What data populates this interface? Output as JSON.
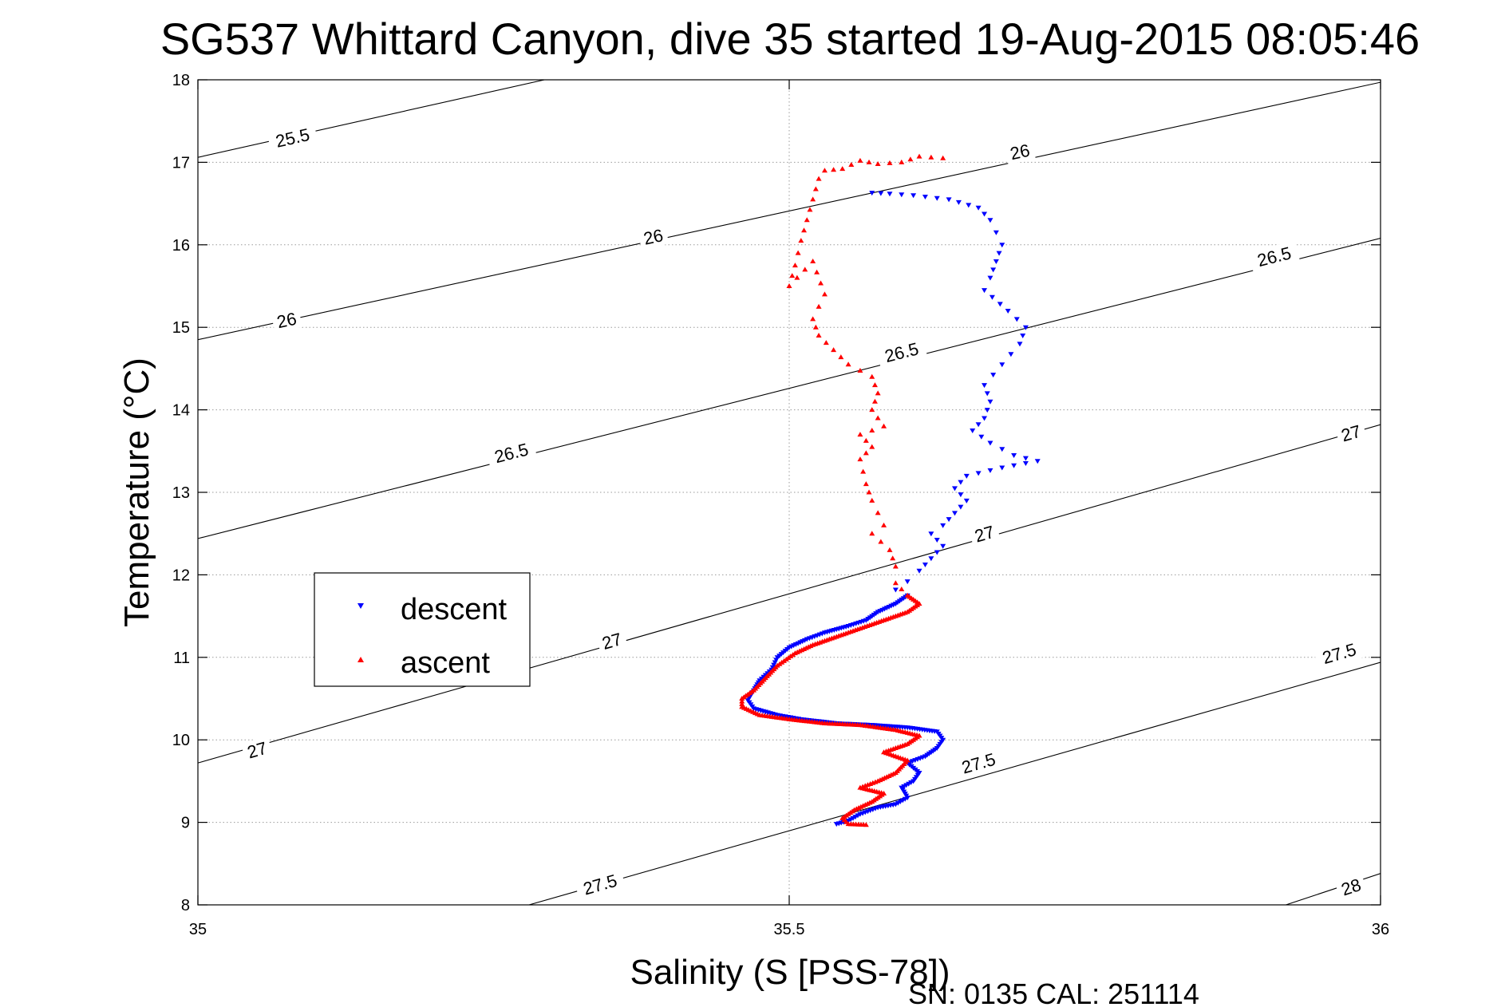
{
  "chart_data": {
    "type": "scatter",
    "title": "SG537 Whittard Canyon, dive 35 started 19-Aug-2015 08:05:46",
    "xlabel": "Salinity (S [PSS-78])",
    "ylabel": "Temperature (°C)",
    "xlim": [
      35,
      36
    ],
    "ylim": [
      8,
      18
    ],
    "xticks": [
      "35",
      "35.5",
      "36"
    ],
    "yticks": [
      "8",
      "9",
      "10",
      "11",
      "12",
      "13",
      "14",
      "15",
      "16",
      "17",
      "18"
    ],
    "grid": true,
    "legend_position": "left",
    "footer": "SN: 0135  CAL: 251114",
    "density_contours": [
      {
        "label": "25.5",
        "points": [
          [
            35,
            17.06
          ],
          [
            35.293,
            18.0
          ]
        ],
        "label_at": [
          [
            35.08,
            17.3
          ]
        ]
      },
      {
        "label": "26",
        "points": [
          [
            35,
            14.85
          ],
          [
            36,
            17.97
          ]
        ],
        "label_at": [
          [
            35.075,
            15.09
          ],
          [
            35.385,
            16.1
          ],
          [
            35.695,
            17.13
          ]
        ]
      },
      {
        "label": "26.5",
        "points": [
          [
            35,
            12.44
          ],
          [
            36,
            16.08
          ]
        ],
        "label_at": [
          [
            35.265,
            13.48
          ],
          [
            35.595,
            14.7
          ],
          [
            35.91,
            15.86
          ]
        ]
      },
      {
        "label": "27",
        "points": [
          [
            35,
            9.72
          ],
          [
            36,
            13.82
          ]
        ],
        "label_at": [
          [
            35.05,
            9.88
          ],
          [
            35.35,
            11.2
          ],
          [
            35.665,
            12.5
          ],
          [
            35.975,
            13.72
          ]
        ]
      },
      {
        "label": "27.5",
        "points": [
          [
            35.28,
            8.0
          ],
          [
            36,
            10.94
          ]
        ],
        "label_at": [
          [
            35.34,
            8.25
          ],
          [
            35.66,
            9.72
          ],
          [
            35.965,
            11.05
          ]
        ]
      },
      {
        "label": "28",
        "points": [
          [
            35.92,
            8.0
          ],
          [
            36,
            8.38
          ]
        ],
        "label_at": [
          [
            35.975,
            8.22
          ]
        ]
      }
    ],
    "series": [
      {
        "name": "descent",
        "color": "#0000ff",
        "marker": "triangle-down",
        "points": [
          [
            35.57,
            16.63
          ],
          [
            35.585,
            16.62
          ],
          [
            35.605,
            16.6
          ],
          [
            35.635,
            16.55
          ],
          [
            35.66,
            16.45
          ],
          [
            35.67,
            16.3
          ],
          [
            35.675,
            16.15
          ],
          [
            35.68,
            16.0
          ],
          [
            35.675,
            15.8
          ],
          [
            35.67,
            15.6
          ],
          [
            35.665,
            15.45
          ],
          [
            35.685,
            15.2
          ],
          [
            35.7,
            15.0
          ],
          [
            35.695,
            14.8
          ],
          [
            35.68,
            14.55
          ],
          [
            35.665,
            14.3
          ],
          [
            35.67,
            14.1
          ],
          [
            35.665,
            13.9
          ],
          [
            35.655,
            13.75
          ],
          [
            35.67,
            13.6
          ],
          [
            35.69,
            13.45
          ],
          [
            35.71,
            13.38
          ],
          [
            35.68,
            13.3
          ],
          [
            35.65,
            13.2
          ],
          [
            35.64,
            13.05
          ],
          [
            35.65,
            12.9
          ],
          [
            35.64,
            12.75
          ],
          [
            35.63,
            12.6
          ],
          [
            35.62,
            12.5
          ],
          [
            35.63,
            12.35
          ],
          [
            35.62,
            12.2
          ],
          [
            35.61,
            12.05
          ],
          [
            35.6,
            11.92
          ],
          [
            35.59,
            11.82
          ],
          [
            35.6,
            11.75
          ],
          [
            35.59,
            11.65
          ],
          [
            35.575,
            11.55
          ],
          [
            35.565,
            11.45
          ],
          [
            35.55,
            11.38
          ],
          [
            35.53,
            11.3
          ],
          [
            35.515,
            11.22
          ],
          [
            35.5,
            11.12
          ],
          [
            35.49,
            11.0
          ],
          [
            35.485,
            10.85
          ],
          [
            35.475,
            10.72
          ],
          [
            35.47,
            10.6
          ],
          [
            35.465,
            10.48
          ],
          [
            35.47,
            10.38
          ],
          [
            35.49,
            10.3
          ],
          [
            35.51,
            10.25
          ],
          [
            35.54,
            10.2
          ],
          [
            35.57,
            10.18
          ],
          [
            35.6,
            10.15
          ],
          [
            35.625,
            10.1
          ],
          [
            35.63,
            10.0
          ],
          [
            35.625,
            9.9
          ],
          [
            35.615,
            9.8
          ],
          [
            35.6,
            9.72
          ],
          [
            35.61,
            9.6
          ],
          [
            35.605,
            9.5
          ],
          [
            35.595,
            9.42
          ],
          [
            35.6,
            9.3
          ],
          [
            35.59,
            9.22
          ],
          [
            35.575,
            9.18
          ],
          [
            35.56,
            9.1
          ],
          [
            35.55,
            9.02
          ],
          [
            35.54,
            8.98
          ]
        ]
      },
      {
        "name": "ascent",
        "color": "#ff0000",
        "marker": "triangle-up",
        "points": [
          [
            35.63,
            17.05
          ],
          [
            35.61,
            17.07
          ],
          [
            35.595,
            17.0
          ],
          [
            35.575,
            16.98
          ],
          [
            35.56,
            17.02
          ],
          [
            35.545,
            16.92
          ],
          [
            35.53,
            16.9
          ],
          [
            35.525,
            16.8
          ],
          [
            35.52,
            16.55
          ],
          [
            35.515,
            16.3
          ],
          [
            35.51,
            16.05
          ],
          [
            35.505,
            15.75
          ],
          [
            35.5,
            15.5
          ],
          [
            35.52,
            15.8
          ],
          [
            35.53,
            15.4
          ],
          [
            35.52,
            15.1
          ],
          [
            35.525,
            14.9
          ],
          [
            35.55,
            14.55
          ],
          [
            35.57,
            14.4
          ],
          [
            35.575,
            14.2
          ],
          [
            35.57,
            14.0
          ],
          [
            35.58,
            13.8
          ],
          [
            35.56,
            13.7
          ],
          [
            35.57,
            13.55
          ],
          [
            35.56,
            13.4
          ],
          [
            35.565,
            13.1
          ],
          [
            35.57,
            12.9
          ],
          [
            35.58,
            12.6
          ],
          [
            35.57,
            12.5
          ],
          [
            35.585,
            12.3
          ],
          [
            35.59,
            12.1
          ],
          [
            35.59,
            11.9
          ],
          [
            35.6,
            11.75
          ],
          [
            35.61,
            11.65
          ],
          [
            35.6,
            11.55
          ],
          [
            35.58,
            11.45
          ],
          [
            35.56,
            11.35
          ],
          [
            35.54,
            11.25
          ],
          [
            35.52,
            11.15
          ],
          [
            35.505,
            11.05
          ],
          [
            35.49,
            10.9
          ],
          [
            35.48,
            10.75
          ],
          [
            35.47,
            10.6
          ],
          [
            35.46,
            10.5
          ],
          [
            35.46,
            10.4
          ],
          [
            35.475,
            10.3
          ],
          [
            35.5,
            10.25
          ],
          [
            35.53,
            10.2
          ],
          [
            35.56,
            10.18
          ],
          [
            35.59,
            10.12
          ],
          [
            35.61,
            10.05
          ],
          [
            35.6,
            9.95
          ],
          [
            35.58,
            9.85
          ],
          [
            35.6,
            9.75
          ],
          [
            35.59,
            9.6
          ],
          [
            35.575,
            9.5
          ],
          [
            35.56,
            9.42
          ],
          [
            35.58,
            9.35
          ],
          [
            35.57,
            9.25
          ],
          [
            35.555,
            9.15
          ],
          [
            35.545,
            9.05
          ],
          [
            35.55,
            8.98
          ],
          [
            35.565,
            8.97
          ]
        ]
      }
    ]
  }
}
